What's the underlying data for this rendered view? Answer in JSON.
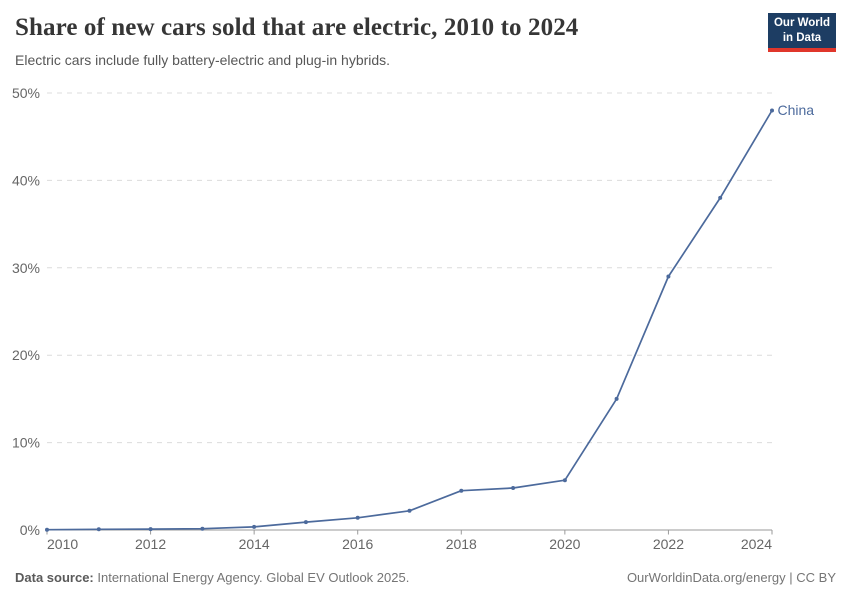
{
  "header": {
    "title": "Share of new cars sold that are electric, 2010 to 2024",
    "subtitle": "Electric cars include fully battery-electric and plug-in hybrids."
  },
  "logo": {
    "line1": "Our World",
    "line2": "in Data",
    "bg_color": "#1d3d63",
    "accent_color": "#e0362b"
  },
  "chart_data": {
    "type": "line",
    "title": "Share of new cars sold that are electric, 2010 to 2024",
    "subtitle": "Electric cars include fully battery-electric and plug-in hybrids.",
    "x": [
      2010,
      2011,
      2012,
      2013,
      2014,
      2015,
      2016,
      2017,
      2018,
      2019,
      2020,
      2021,
      2022,
      2023,
      2024
    ],
    "series": [
      {
        "name": "China",
        "color": "#4c6a9c",
        "values": [
          0.03,
          0.08,
          0.1,
          0.15,
          0.35,
          0.9,
          1.4,
          2.2,
          4.5,
          4.8,
          5.7,
          15,
          29,
          38,
          48
        ]
      }
    ],
    "xlabel": "",
    "ylabel": "",
    "ylim": [
      0,
      50
    ],
    "yticks": [
      0,
      10,
      20,
      30,
      40,
      50
    ],
    "ytick_suffix": "%",
    "xticks": [
      2010,
      2012,
      2014,
      2016,
      2018,
      2020,
      2022,
      2024
    ],
    "grid": "horizontal-dashed",
    "legend": "end-of-line-label",
    "colors": {
      "gridline": "#dcdcdc",
      "axis": "#9a9a9a",
      "tick_text": "#666666"
    }
  },
  "footer": {
    "source_label": "Data source:",
    "source_text": " International Energy Agency. Global EV Outlook 2025.",
    "rights": "OurWorldinData.org/energy | CC BY"
  }
}
